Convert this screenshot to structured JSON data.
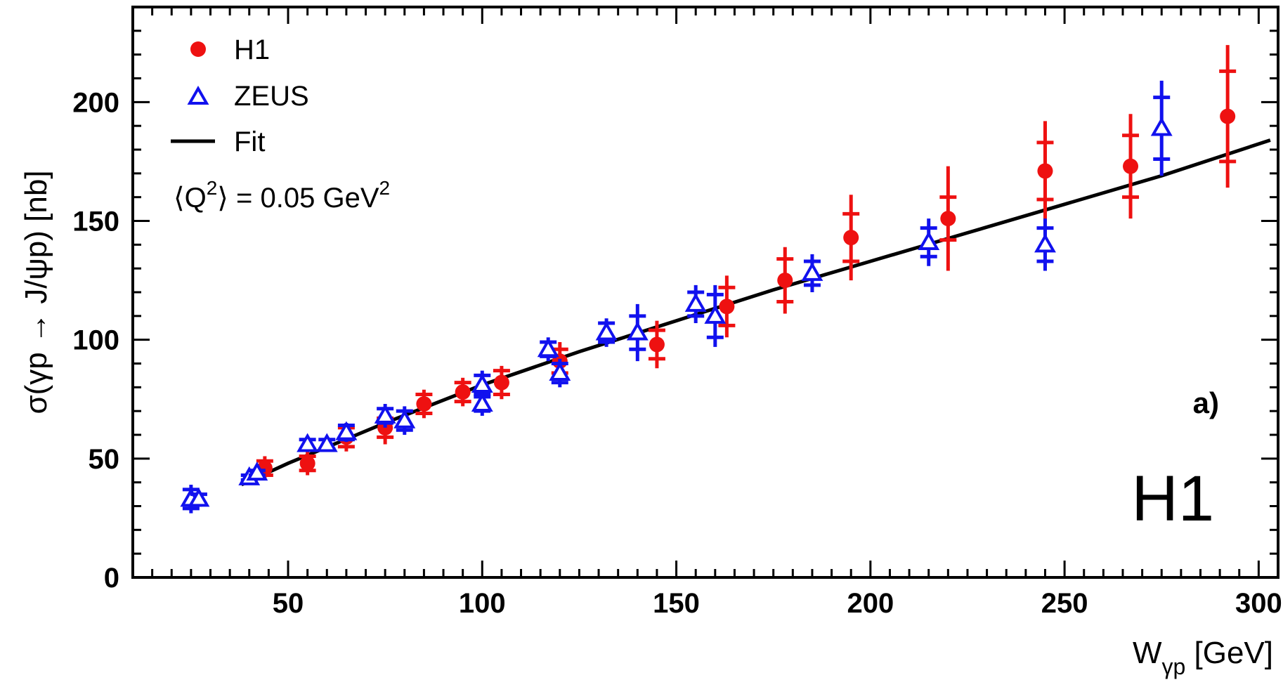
{
  "chart_data": {
    "type": "scatter",
    "xlabel": "W",
    "xlabel_sub": "γp",
    "xlabel_unit": " [GeV]",
    "ylabel": "σ(γp → J/ψp) [nb]",
    "xlim": [
      10,
      305
    ],
    "ylim": [
      0,
      240
    ],
    "x_ticks": [
      50,
      100,
      150,
      200,
      250,
      300
    ],
    "y_ticks": [
      0,
      50,
      100,
      150,
      200
    ],
    "legend_position": "top-left",
    "annotations": {
      "panel": "a)",
      "experiment": "H1",
      "q2_prefix": "⟨Q",
      "q2_sup": "2",
      "q2_mid": "⟩ = 0.05 GeV",
      "q2_sup2": "2"
    },
    "series": [
      {
        "name": "H1",
        "marker": "circle",
        "color": "#ee1111",
        "points": [
          {
            "x": 44,
            "y": 46,
            "stat": 3,
            "tot": 5
          },
          {
            "x": 55,
            "y": 48,
            "stat": 3,
            "tot": 5
          },
          {
            "x": 65,
            "y": 59,
            "stat": 4,
            "tot": 6
          },
          {
            "x": 75,
            "y": 63,
            "stat": 4,
            "tot": 7
          },
          {
            "x": 85,
            "y": 73,
            "stat": 4,
            "tot": 6
          },
          {
            "x": 95,
            "y": 78,
            "stat": 4,
            "tot": 6
          },
          {
            "x": 105,
            "y": 82,
            "stat": 5,
            "tot": 7
          },
          {
            "x": 120,
            "y": 91,
            "stat": 5,
            "tot": 8
          },
          {
            "x": 145,
            "y": 98,
            "stat": 6,
            "tot": 10
          },
          {
            "x": 163,
            "y": 114,
            "stat": 8,
            "tot": 13
          },
          {
            "x": 178,
            "y": 125,
            "stat": 9,
            "tot": 14
          },
          {
            "x": 195,
            "y": 143,
            "stat": 10,
            "tot": 18
          },
          {
            "x": 220,
            "y": 151,
            "stat": 9,
            "tot": 22
          },
          {
            "x": 245,
            "y": 171,
            "stat": 12,
            "tot": 21
          },
          {
            "x": 267,
            "y": 173,
            "stat": 13,
            "tot": 22
          },
          {
            "x": 292,
            "y": 194,
            "stat": 19,
            "tot": 30
          }
        ]
      },
      {
        "name": "ZEUS",
        "marker": "triangle",
        "color": "#1111ee",
        "points": [
          {
            "x": 25,
            "y": 33,
            "stat": 4,
            "tot": 6
          },
          {
            "x": 27,
            "y": 33,
            "stat": 2,
            "tot": 3
          },
          {
            "x": 40,
            "y": 42,
            "stat": 1,
            "tot": 2
          },
          {
            "x": 42,
            "y": 44,
            "stat": 1,
            "tot": 2
          },
          {
            "x": 55,
            "y": 56,
            "stat": 2,
            "tot": 3
          },
          {
            "x": 60,
            "y": 56,
            "stat": 2,
            "tot": 3
          },
          {
            "x": 65,
            "y": 61,
            "stat": 3,
            "tot": 4
          },
          {
            "x": 75,
            "y": 68,
            "stat": 3,
            "tot": 5
          },
          {
            "x": 80,
            "y": 66,
            "stat": 4,
            "tot": 6
          },
          {
            "x": 100,
            "y": 81,
            "stat": 4,
            "tot": 6
          },
          {
            "x": 100,
            "y": 73,
            "stat": 3,
            "tot": 5
          },
          {
            "x": 117,
            "y": 96,
            "stat": 3,
            "tot": 5
          },
          {
            "x": 120,
            "y": 86,
            "stat": 4,
            "tot": 6
          },
          {
            "x": 132,
            "y": 103,
            "stat": 4,
            "tot": 6
          },
          {
            "x": 140,
            "y": 103,
            "stat": 7,
            "tot": 12
          },
          {
            "x": 155,
            "y": 115,
            "stat": 5,
            "tot": 8
          },
          {
            "x": 160,
            "y": 110,
            "stat": 9,
            "tot": 13
          },
          {
            "x": 185,
            "y": 128,
            "stat": 5,
            "tot": 8
          },
          {
            "x": 215,
            "y": 141,
            "stat": 6,
            "tot": 10
          },
          {
            "x": 245,
            "y": 140,
            "stat": 7,
            "tot": 11
          },
          {
            "x": 275,
            "y": 189,
            "stat": 13,
            "tot": 20
          }
        ]
      }
    ],
    "fit": {
      "name": "Fit",
      "color": "#000000",
      "x": [
        38,
        50,
        75,
        100,
        125,
        150,
        175,
        200,
        225,
        250,
        275,
        303
      ],
      "y": [
        39,
        48,
        65,
        81,
        95,
        108,
        121,
        133,
        145,
        157,
        169,
        184
      ]
    }
  }
}
